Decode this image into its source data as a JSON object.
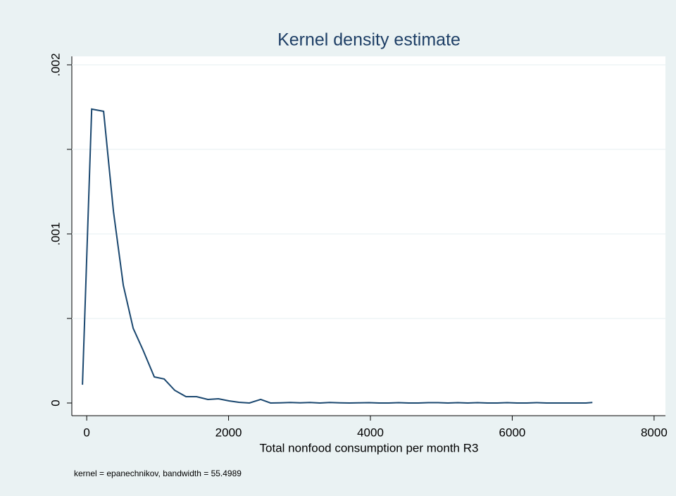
{
  "chart_data": {
    "type": "line",
    "title": "Kernel density estimate",
    "x_label": "Total nonfood consumption per month R3",
    "note": "kernel = epanechnikov, bandwidth = 55.4989",
    "x": [
      -60,
      70,
      238,
      377,
      516,
      655,
      794,
      953,
      1092,
      1241,
      1400,
      1549,
      1708,
      1857,
      2006,
      2145,
      2294,
      2453,
      2592,
      2731,
      2870,
      3009,
      3148,
      3287,
      3426,
      3565,
      3704,
      3843,
      3982,
      4121,
      4260,
      4399,
      4538,
      4677,
      4816,
      4955,
      5094,
      5233,
      5372,
      5511,
      5650,
      5789,
      5928,
      6067,
      6206,
      6345,
      6484,
      6623,
      6762,
      6901,
      7040,
      7130
    ],
    "series": [
      {
        "color": "#1a476f",
        "values": [
          0.000108,
          0.001738,
          0.001725,
          0.001133,
          0.000696,
          0.000442,
          0.000313,
          0.000154,
          0.000142,
          7.5e-05,
          3.75e-05,
          3.75e-05,
          2.1e-05,
          2.5e-05,
          1.25e-05,
          4e-06,
          0,
          2.1e-05,
          0,
          1e-06,
          3e-06,
          1e-06,
          3e-06,
          0,
          3e-06,
          1e-06,
          0,
          1e-06,
          2e-06,
          0,
          0,
          2e-06,
          0,
          0,
          2e-06,
          2e-06,
          0,
          2e-06,
          0,
          2e-06,
          0,
          0,
          2e-06,
          0,
          0,
          2e-06,
          0,
          0,
          0,
          0,
          0,
          3e-06
        ]
      }
    ],
    "xlim": [
      -210,
      8160
    ],
    "ylim": [
      -7.5e-05,
      0.00205
    ],
    "xticks": [
      0,
      2000,
      4000,
      6000,
      8000
    ],
    "yticks": [
      0,
      {
        "value": 0.001,
        "label": ".001"
      },
      {
        "value": 0.002,
        "label": ".002"
      }
    ],
    "yticks_minor": [
      0.0005,
      0.0015
    ],
    "grid": true
  }
}
